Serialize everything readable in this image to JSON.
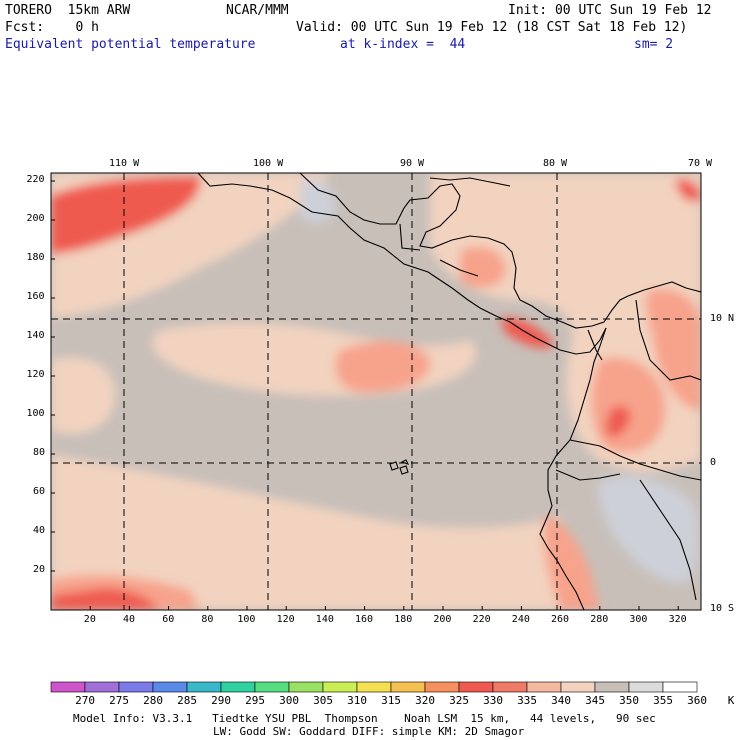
{
  "header": {
    "model": "TORERO  15km ARW",
    "org": "NCAR/MMM",
    "init": "Init: 00 UTC Sun 19 Feb 12",
    "fcst": "Fcst:    0 h",
    "valid": "Valid: 00 UTC Sun 19 Feb 12 (18 CST Sat 18 Feb 12)",
    "field": "Equivalent potential temperature",
    "level": "at k-index =  44",
    "smooth": "sm= 2"
  },
  "map": {
    "lon_labels": [
      "110 W",
      "100 W",
      "90 W",
      "80 W",
      "70 W"
    ],
    "lat_labels": [
      "10 N",
      "0",
      "10 S"
    ],
    "x_ticks": [
      "20",
      "40",
      "60",
      "80",
      "100",
      "120",
      "140",
      "160",
      "180",
      "200",
      "220",
      "240",
      "260",
      "280",
      "300",
      "320"
    ],
    "y_ticks": [
      "20",
      "40",
      "60",
      "80",
      "100",
      "120",
      "140",
      "160",
      "180",
      "200",
      "220"
    ],
    "colors": {
      "ocean_base": "#c8bfb9",
      "warm_1": "#f2d3c0",
      "warm_2": "#f7a38c",
      "warm_3": "#ef5a50",
      "cool_1": "#cdd0d8"
    }
  },
  "colorbar": {
    "labels": [
      "270",
      "275",
      "280",
      "285",
      "290",
      "295",
      "300",
      "305",
      "310",
      "315",
      "320",
      "325",
      "330",
      "335",
      "340",
      "345",
      "350",
      "355",
      "360",
      "K"
    ],
    "colors": [
      "#cc55cc",
      "#a070d8",
      "#7a7ae8",
      "#5a8ae8",
      "#38b8c8",
      "#30d0a0",
      "#55dd80",
      "#99e065",
      "#ccee55",
      "#f4e050",
      "#f5c050",
      "#f7905f",
      "#ef5a50",
      "#f07a68",
      "#f5b8a0",
      "#f2d3c0",
      "#c8bfb9",
      "#dcdcdc",
      "#ffffff"
    ]
  },
  "footer": {
    "line1": "Model Info: V3.3.1   Tiedtke YSU PBL  Thompson    Noah LSM  15 km,   44 levels,   90 sec",
    "line2": "LW: Godd SW: Goddard DIFF: simple KM: 2D Smagor"
  }
}
